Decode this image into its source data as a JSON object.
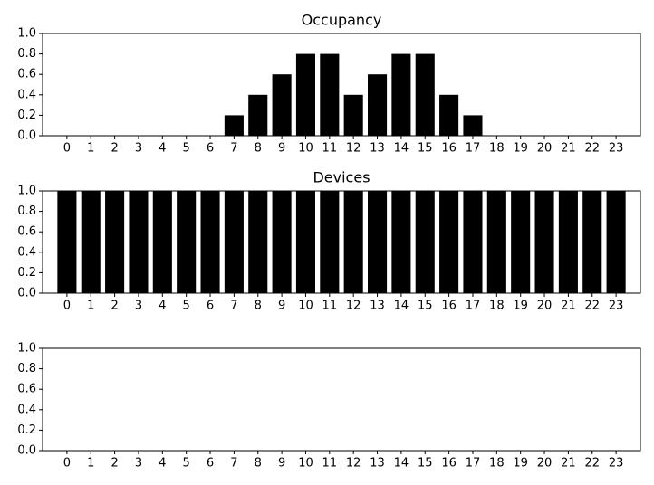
{
  "chart_data": [
    {
      "type": "bar",
      "title": "Occupancy",
      "categories": [
        0,
        1,
        2,
        3,
        4,
        5,
        6,
        7,
        8,
        9,
        10,
        11,
        12,
        13,
        14,
        15,
        16,
        17,
        18,
        19,
        20,
        21,
        22,
        23
      ],
      "values": [
        0,
        0,
        0,
        0,
        0,
        0,
        0,
        0.2,
        0.4,
        0.6,
        0.8,
        0.8,
        0.4,
        0.6,
        0.8,
        0.8,
        0.4,
        0.2,
        0,
        0,
        0,
        0,
        0,
        0
      ],
      "color": "#000000",
      "ylim": [
        0,
        1
      ],
      "yticks": [
        {
          "value": 0,
          "label": "0.0"
        },
        0.2,
        0.4,
        0.6,
        0.8,
        {
          "value": 1,
          "label": "1.0"
        }
      ]
    },
    {
      "type": "bar",
      "title": "Devices",
      "categories": [
        0,
        1,
        2,
        3,
        4,
        5,
        6,
        7,
        8,
        9,
        10,
        11,
        12,
        13,
        14,
        15,
        16,
        17,
        18,
        19,
        20,
        21,
        22,
        23
      ],
      "values": [
        1,
        1,
        1,
        1,
        1,
        1,
        1,
        1,
        1,
        1,
        1,
        1,
        1,
        1,
        1,
        1,
        1,
        1,
        1,
        1,
        1,
        1,
        1,
        1
      ],
      "color": "#000000",
      "ylim": [
        0,
        1
      ],
      "yticks": [
        {
          "value": 0,
          "label": "0.0"
        },
        0.2,
        0.4,
        0.6,
        0.8,
        {
          "value": 1,
          "label": "1.0"
        }
      ]
    },
    {
      "type": "bar",
      "categories": [
        0,
        1,
        2,
        3,
        4,
        5,
        6,
        7,
        8,
        9,
        10,
        11,
        12,
        13,
        14,
        15,
        16,
        17,
        18,
        19,
        20,
        21,
        22,
        23
      ],
      "ylim": [
        0,
        1
      ],
      "yticks": [
        {
          "value": 0,
          "label": "0.0"
        },
        0.2,
        0.4,
        0.6,
        0.8,
        {
          "value": 1,
          "label": "1.0"
        }
      ]
    }
  ]
}
